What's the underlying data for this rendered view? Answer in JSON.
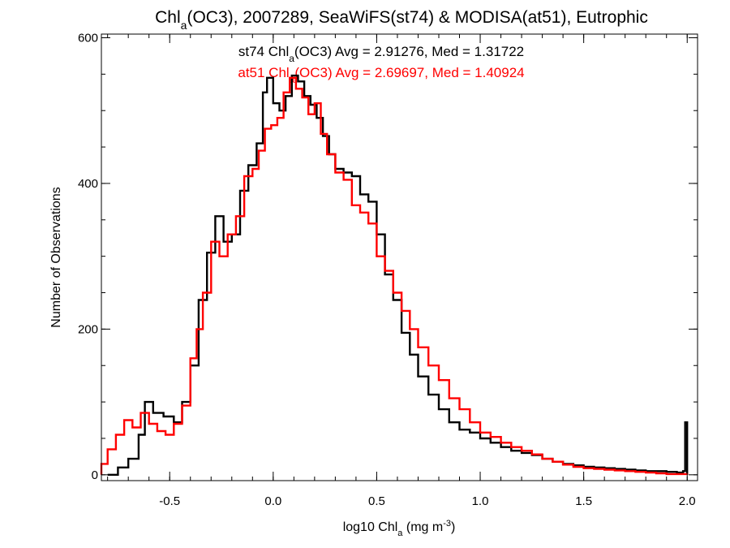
{
  "chart_data": {
    "type": "histogram-step",
    "title": {
      "pre": "Chl",
      "sub": "a",
      "post": "(OC3), 2007289, SeaWiFS(st74) & MODISA(at51), Eutrophic"
    },
    "xlabel": {
      "pre": "log10 Chl",
      "sub": "a",
      "mid": " (mg m",
      "sup": "-3",
      "post": ")"
    },
    "ylabel": "Number of Observations",
    "xlim": [
      -0.83,
      2.05
    ],
    "ylim": [
      -8,
      605
    ],
    "xticks": [
      -0.5,
      0.0,
      0.5,
      1.0,
      1.5,
      2.0
    ],
    "xtick_labels": [
      "-0.5",
      "0.0",
      "0.5",
      "1.0",
      "1.5",
      "2.0"
    ],
    "yticks": [
      0,
      200,
      400,
      600
    ],
    "ytick_labels": [
      "0",
      "200",
      "400",
      "600"
    ],
    "x_minor_step": 0.1,
    "y_minor_step": 50,
    "grid": false,
    "annotations": [
      {
        "pre": "st74 Chl",
        "sub": "a",
        "post": "(OC3) Avg = 2.91276, Med = 1.31722",
        "color": "#000000"
      },
      {
        "pre": "at51 Chl",
        "sub": "a",
        "post": "(OC3) Avg = 2.69697, Med = 1.40924",
        "color": "#ff0000"
      }
    ],
    "series": [
      {
        "color": "#000000",
        "points": [
          [
            -0.8,
            0
          ],
          [
            -0.75,
            10
          ],
          [
            -0.7,
            22
          ],
          [
            -0.65,
            55
          ],
          [
            -0.62,
            100
          ],
          [
            -0.58,
            85
          ],
          [
            -0.53,
            80
          ],
          [
            -0.48,
            72
          ],
          [
            -0.44,
            100
          ],
          [
            -0.4,
            150
          ],
          [
            -0.36,
            240
          ],
          [
            -0.32,
            305
          ],
          [
            -0.28,
            355
          ],
          [
            -0.24,
            320
          ],
          [
            -0.2,
            330
          ],
          [
            -0.16,
            390
          ],
          [
            -0.12,
            425
          ],
          [
            -0.08,
            455
          ],
          [
            -0.05,
            525
          ],
          [
            -0.03,
            545
          ],
          [
            0.0,
            510
          ],
          [
            0.03,
            500
          ],
          [
            0.06,
            520
          ],
          [
            0.09,
            548
          ],
          [
            0.12,
            540
          ],
          [
            0.15,
            520
          ],
          [
            0.18,
            508
          ],
          [
            0.21,
            490
          ],
          [
            0.24,
            465
          ],
          [
            0.27,
            440
          ],
          [
            0.3,
            420
          ],
          [
            0.34,
            415
          ],
          [
            0.38,
            410
          ],
          [
            0.42,
            385
          ],
          [
            0.46,
            375
          ],
          [
            0.5,
            330
          ],
          [
            0.54,
            275
          ],
          [
            0.58,
            240
          ],
          [
            0.62,
            195
          ],
          [
            0.66,
            165
          ],
          [
            0.7,
            135
          ],
          [
            0.75,
            110
          ],
          [
            0.8,
            90
          ],
          [
            0.85,
            72
          ],
          [
            0.9,
            62
          ],
          [
            0.95,
            58
          ],
          [
            1.0,
            50
          ],
          [
            1.05,
            44
          ],
          [
            1.1,
            38
          ],
          [
            1.15,
            33
          ],
          [
            1.2,
            30
          ],
          [
            1.25,
            27
          ],
          [
            1.3,
            22
          ],
          [
            1.35,
            18
          ],
          [
            1.4,
            15
          ],
          [
            1.45,
            13
          ],
          [
            1.5,
            11
          ],
          [
            1.55,
            10
          ],
          [
            1.6,
            9
          ],
          [
            1.65,
            8
          ],
          [
            1.7,
            7
          ],
          [
            1.75,
            6
          ],
          [
            1.8,
            5
          ],
          [
            1.85,
            5
          ],
          [
            1.9,
            4
          ],
          [
            1.95,
            3
          ],
          [
            1.98,
            5
          ],
          [
            1.99,
            72
          ],
          [
            2.0,
            0
          ]
        ]
      },
      {
        "color": "#ff0000",
        "points": [
          [
            -0.83,
            15
          ],
          [
            -0.8,
            35
          ],
          [
            -0.76,
            55
          ],
          [
            -0.72,
            75
          ],
          [
            -0.68,
            65
          ],
          [
            -0.64,
            85
          ],
          [
            -0.6,
            70
          ],
          [
            -0.56,
            60
          ],
          [
            -0.52,
            55
          ],
          [
            -0.48,
            70
          ],
          [
            -0.44,
            95
          ],
          [
            -0.4,
            160
          ],
          [
            -0.37,
            200
          ],
          [
            -0.34,
            250
          ],
          [
            -0.3,
            320
          ],
          [
            -0.26,
            300
          ],
          [
            -0.22,
            330
          ],
          [
            -0.18,
            355
          ],
          [
            -0.14,
            410
          ],
          [
            -0.1,
            420
          ],
          [
            -0.07,
            445
          ],
          [
            -0.04,
            475
          ],
          [
            -0.01,
            480
          ],
          [
            0.02,
            490
          ],
          [
            0.05,
            525
          ],
          [
            0.08,
            545
          ],
          [
            0.11,
            530
          ],
          [
            0.14,
            518
          ],
          [
            0.17,
            495
          ],
          [
            0.2,
            510
          ],
          [
            0.23,
            468
          ],
          [
            0.26,
            440
          ],
          [
            0.3,
            415
          ],
          [
            0.34,
            405
          ],
          [
            0.38,
            370
          ],
          [
            0.42,
            360
          ],
          [
            0.46,
            345
          ],
          [
            0.5,
            300
          ],
          [
            0.54,
            280
          ],
          [
            0.58,
            250
          ],
          [
            0.62,
            225
          ],
          [
            0.66,
            200
          ],
          [
            0.7,
            175
          ],
          [
            0.75,
            150
          ],
          [
            0.8,
            130
          ],
          [
            0.85,
            105
          ],
          [
            0.9,
            90
          ],
          [
            0.95,
            72
          ],
          [
            1.0,
            58
          ],
          [
            1.05,
            52
          ],
          [
            1.1,
            44
          ],
          [
            1.15,
            38
          ],
          [
            1.2,
            33
          ],
          [
            1.25,
            28
          ],
          [
            1.3,
            22
          ],
          [
            1.35,
            18
          ],
          [
            1.4,
            14
          ],
          [
            1.45,
            11
          ],
          [
            1.5,
            9
          ],
          [
            1.55,
            8
          ],
          [
            1.6,
            7
          ],
          [
            1.65,
            6
          ],
          [
            1.7,
            5
          ],
          [
            1.75,
            4
          ],
          [
            1.8,
            3
          ],
          [
            1.85,
            2
          ],
          [
            1.9,
            1
          ],
          [
            1.95,
            1
          ],
          [
            2.0,
            0
          ]
        ]
      }
    ]
  }
}
